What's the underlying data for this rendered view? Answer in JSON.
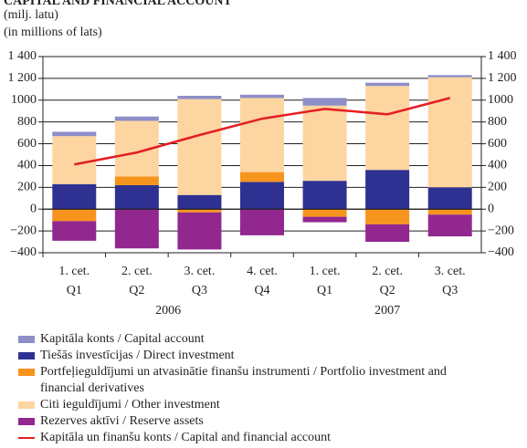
{
  "chart_data": {
    "type": "stacked_bar_line",
    "title": "CAPITAL AND FINANCIAL ACCOUNT",
    "subtitle": "(milj. latu)",
    "subtitle2": "(in millions of lats)",
    "categories": [
      [
        "1. cet.",
        "Q1",
        "2006"
      ],
      [
        "2. cet.",
        "Q2",
        "2006"
      ],
      [
        "3. cet.",
        "Q3",
        "2006"
      ],
      [
        "4. cet.",
        "Q4",
        "2006"
      ],
      [
        "1. cet.",
        "Q1",
        "2007"
      ],
      [
        "2. cet.",
        "Q2",
        "2007"
      ],
      [
        "3. cet.",
        "Q3",
        "2007"
      ]
    ],
    "series": [
      {
        "name": "Kapitāla konts / Capital account",
        "color": "#8e8ec8",
        "values": [
          40,
          40,
          30,
          30,
          70,
          30,
          20
        ]
      },
      {
        "name": "Tiešās investīcijas / Direct investment",
        "color": "#2e3192",
        "values": [
          230,
          220,
          130,
          250,
          260,
          360,
          200
        ]
      },
      {
        "name": "Portfeļieguldījumi un atvasinātie finanšu instrumenti / Portfolio investment and financial derivatives",
        "color": "#f7941d",
        "values": [
          -110,
          80,
          -30,
          90,
          -70,
          -140,
          -50
        ]
      },
      {
        "name": "Citi ieguldījumi / Other investment",
        "color": "#fdd5a0",
        "values": [
          440,
          510,
          880,
          680,
          690,
          770,
          1010
        ]
      },
      {
        "name": "Rezerves aktīvi / Reserve assets",
        "color": "#92278f",
        "values": [
          -180,
          -360,
          -340,
          -240,
          -50,
          -160,
          -200
        ]
      },
      {
        "name": "Kapitāla un finanšu konts / Capital and financial account",
        "color": "#e31e24",
        "type": "line",
        "values": [
          410,
          520,
          680,
          830,
          920,
          870,
          1020
        ]
      }
    ],
    "stack_order": [
      1,
      2,
      3,
      0,
      4
    ],
    "ylim": [
      -400,
      1400
    ],
    "yticks": [
      {
        "value": -400,
        "label": "−400"
      },
      {
        "value": -200,
        "label": "−200"
      },
      0,
      200,
      400,
      600,
      800,
      1000,
      {
        "value": 1200,
        "label": "1 200"
      },
      {
        "value": 1400,
        "label": "1 400"
      }
    ],
    "grid": true
  }
}
